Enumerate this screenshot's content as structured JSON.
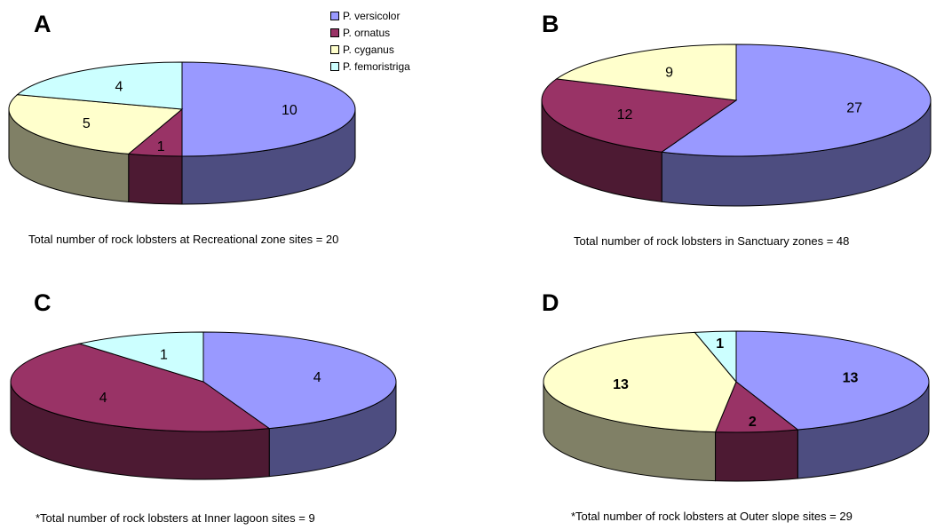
{
  "colors": {
    "P. versicolor": "#9999ff",
    "P. ornatus": "#993366",
    "P. cyganus": "#ffffcc",
    "P. femoristriga": "#ccffff"
  },
  "legend": {
    "items": [
      {
        "label": "P. versicolor",
        "color": "#9999ff"
      },
      {
        "label": "P. ornatus",
        "color": "#993366"
      },
      {
        "label": "P. cyganus",
        "color": "#ffffcc"
      },
      {
        "label": "P. femoristriga",
        "color": "#ccffff"
      }
    ]
  },
  "chart_data": [
    {
      "type": "pie",
      "panel": "A",
      "caption": "Total number of rock lobsters at Recreational zone sites = 20",
      "bold_labels": false,
      "slices": [
        {
          "name": "P. versicolor",
          "value": 10
        },
        {
          "name": "P. ornatus",
          "value": 1
        },
        {
          "name": "P. cyganus",
          "value": 5
        },
        {
          "name": "P. femoristriga",
          "value": 4
        }
      ]
    },
    {
      "type": "pie",
      "panel": "B",
      "caption": "Total number of rock lobsters in Sanctuary zones = 48",
      "bold_labels": false,
      "slices": [
        {
          "name": "P. versicolor",
          "value": 27
        },
        {
          "name": "P. ornatus",
          "value": 12
        },
        {
          "name": "P. cyganus",
          "value": 9
        }
      ]
    },
    {
      "type": "pie",
      "panel": "C",
      "caption": "*Total number of rock lobsters at Inner lagoon sites = 9",
      "bold_labels": false,
      "slices": [
        {
          "name": "P. versicolor",
          "value": 4
        },
        {
          "name": "P. ornatus",
          "value": 4
        },
        {
          "name": "P. femoristriga",
          "value": 1
        }
      ]
    },
    {
      "type": "pie",
      "panel": "D",
      "caption": "*Total number of rock lobsters at Outer slope sites = 29",
      "bold_labels": true,
      "slices": [
        {
          "name": "P. versicolor",
          "value": 13
        },
        {
          "name": "P. ornatus",
          "value": 2
        },
        {
          "name": "P. cyganus",
          "value": 13
        },
        {
          "name": "P. femoristriga",
          "value": 1
        }
      ]
    }
  ]
}
